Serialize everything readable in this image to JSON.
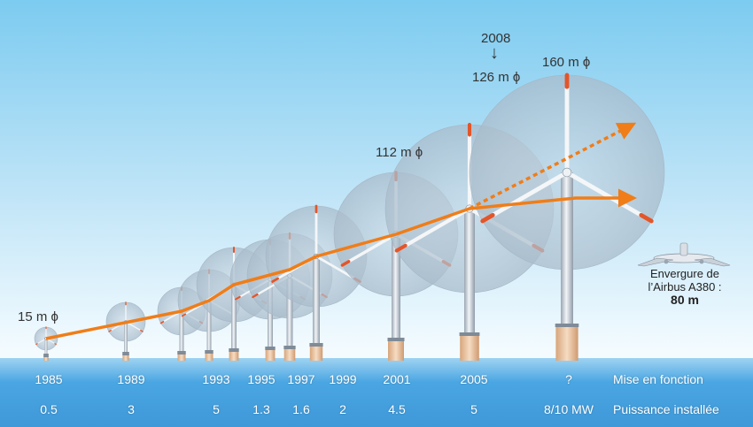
{
  "diameters": {
    "first": "15 m ϕ",
    "d2001": "112 m ϕ",
    "d2008": "126 m ϕ",
    "current": "160 m ϕ"
  },
  "year_2008": "2008",
  "airbus": {
    "line1": "Envergure de",
    "line2": "l’Airbus A380 :",
    "value": "80 m"
  },
  "row_labels": {
    "years": "Mise en fonction",
    "power": "Puissance installée"
  },
  "years": [
    "1985",
    "1989",
    "1993",
    "1995",
    "1997",
    "1999",
    "2001",
    "2005",
    "?"
  ],
  "powers": [
    "0.5",
    "3",
    "5",
    "1.3",
    "1.6",
    "2",
    "4.5",
    "5",
    "8/10 MW"
  ],
  "colors": {
    "trend": "#f07d18",
    "rotor": "#b4c8d8",
    "tower": "#d7dee6",
    "foundation": "#e9c6a3",
    "sea": "#3f98d8"
  }
}
